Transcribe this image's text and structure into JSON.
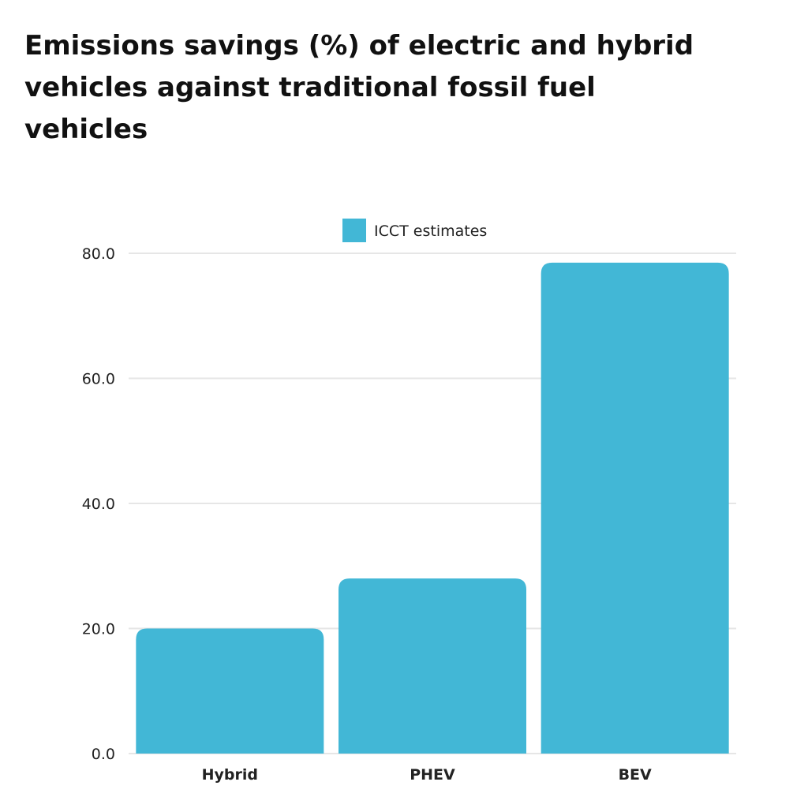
{
  "chart_data": {
    "type": "bar",
    "title": "Emissions savings (%) of electric and hybrid vehicles against traditional fossil fuel vehicles",
    "categories": [
      "Hybrid",
      "PHEV",
      "BEV"
    ],
    "series": [
      {
        "name": "ICCT estimates",
        "values": [
          20.0,
          28.0,
          78.5
        ],
        "color": "#42b7d6"
      }
    ],
    "ylim": [
      0,
      80
    ],
    "yticks": [
      "0.0",
      "20.0",
      "40.0",
      "60.0",
      "80.0"
    ],
    "grid": true,
    "legend": "top-center",
    "xlabel": "",
    "ylabel": ""
  }
}
